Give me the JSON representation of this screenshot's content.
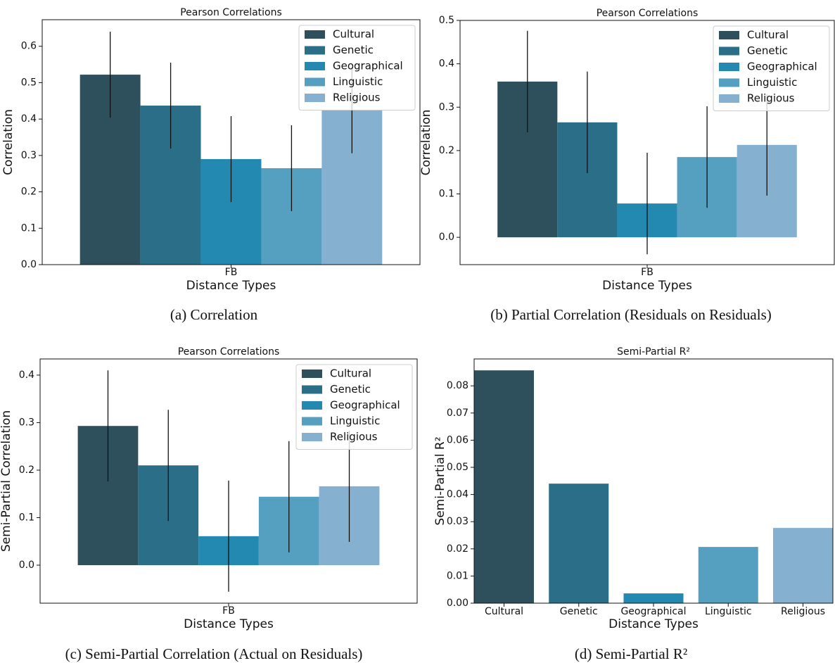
{
  "chart_data": [
    {
      "type": "grouped-bar",
      "title": "Pearson Correlations",
      "caption": "(a)  Correlation",
      "xlabel": "Distance Types",
      "ylabel": "Correlation",
      "categories": [
        "FB"
      ],
      "legend": "upper right",
      "series": [
        {
          "name": "Cultural",
          "color": "#2e4f5c",
          "values": [
            0.522
          ],
          "errors": [
            0.118
          ]
        },
        {
          "name": "Genetic",
          "color": "#2a6e87",
          "values": [
            0.437
          ],
          "errors": [
            0.118
          ]
        },
        {
          "name": "Geographical",
          "color": "#2389b0",
          "values": [
            0.29
          ],
          "errors": [
            0.118
          ]
        },
        {
          "name": "Linguistic",
          "color": "#559fc1",
          "values": [
            0.265
          ],
          "errors": [
            0.118
          ]
        },
        {
          "name": "Religious",
          "color": "#86b0d0",
          "values": [
            0.424
          ],
          "errors": [
            0.118
          ]
        }
      ],
      "ylim": [
        0,
        0.673
      ],
      "yticks": [
        {
          "value": 0,
          "label": "0.0"
        },
        0.1,
        0.2,
        0.3,
        0.4,
        0.5,
        0.6
      ]
    },
    {
      "type": "grouped-bar",
      "title": "Pearson Correlations",
      "caption": "(b)  Partial Correlation (Residuals on Residuals)",
      "xlabel": "Distance Types",
      "ylabel": "Correlation",
      "categories": [
        "FB"
      ],
      "legend": "upper right",
      "series": [
        {
          "name": "Cultural",
          "color": "#2e4f5c",
          "values": [
            0.359
          ],
          "errors": [
            0.117
          ]
        },
        {
          "name": "Genetic",
          "color": "#2a6e87",
          "values": [
            0.265
          ],
          "errors": [
            0.117
          ]
        },
        {
          "name": "Geographical",
          "color": "#2389b0",
          "values": [
            0.078
          ],
          "errors": [
            0.117
          ]
        },
        {
          "name": "Linguistic",
          "color": "#559fc1",
          "values": [
            0.185
          ],
          "errors": [
            0.117
          ]
        },
        {
          "name": "Religious",
          "color": "#86b0d0",
          "values": [
            0.213
          ],
          "errors": [
            0.117
          ]
        }
      ],
      "ylim": [
        -0.063,
        0.5
      ],
      "yticks": [
        {
          "value": 0,
          "label": "0.0"
        },
        0.1,
        0.2,
        0.3,
        0.4,
        0.5
      ]
    },
    {
      "type": "grouped-bar",
      "title": "Pearson Correlations",
      "caption": "(c)  Semi-Partial Correlation (Actual on Residuals)",
      "xlabel": "Distance Types",
      "ylabel": "Semi-Partial Correlation",
      "categories": [
        "FB"
      ],
      "legend": "upper right",
      "series": [
        {
          "name": "Cultural",
          "color": "#2e4f5c",
          "values": [
            0.293
          ],
          "errors": [
            0.117
          ]
        },
        {
          "name": "Genetic",
          "color": "#2a6e87",
          "values": [
            0.21
          ],
          "errors": [
            0.117
          ]
        },
        {
          "name": "Geographical",
          "color": "#2389b0",
          "values": [
            0.061
          ],
          "errors": [
            0.117
          ]
        },
        {
          "name": "Linguistic",
          "color": "#559fc1",
          "values": [
            0.144
          ],
          "errors": [
            0.117
          ]
        },
        {
          "name": "Religious",
          "color": "#86b0d0",
          "values": [
            0.166
          ],
          "errors": [
            0.117
          ]
        }
      ],
      "ylim": [
        -0.08,
        0.434
      ],
      "yticks": [
        {
          "value": 0,
          "label": "0.0"
        },
        0.1,
        0.2,
        0.3,
        0.4
      ]
    },
    {
      "type": "bar",
      "title": "Semi-Partial R²",
      "caption": "(d)  Semi-Partial R²",
      "xlabel": "Distance Types",
      "ylabel": "Semi-Partial R²",
      "categories": [
        "Cultural",
        "Genetic",
        "Geographical",
        "Linguistic",
        "Religious"
      ],
      "values": [
        0.0857,
        0.044,
        0.0036,
        0.0207,
        0.0277
      ],
      "colors": [
        "#2e4f5c",
        "#2a6e87",
        "#2389b0",
        "#559fc1",
        "#86b0d0"
      ],
      "ylim": [
        0,
        0.0899
      ],
      "yticks": [
        {
          "value": 0,
          "label": "0.00"
        },
        0.01,
        0.02,
        0.03,
        0.04,
        0.05,
        0.06,
        0.07,
        0.08
      ]
    }
  ]
}
